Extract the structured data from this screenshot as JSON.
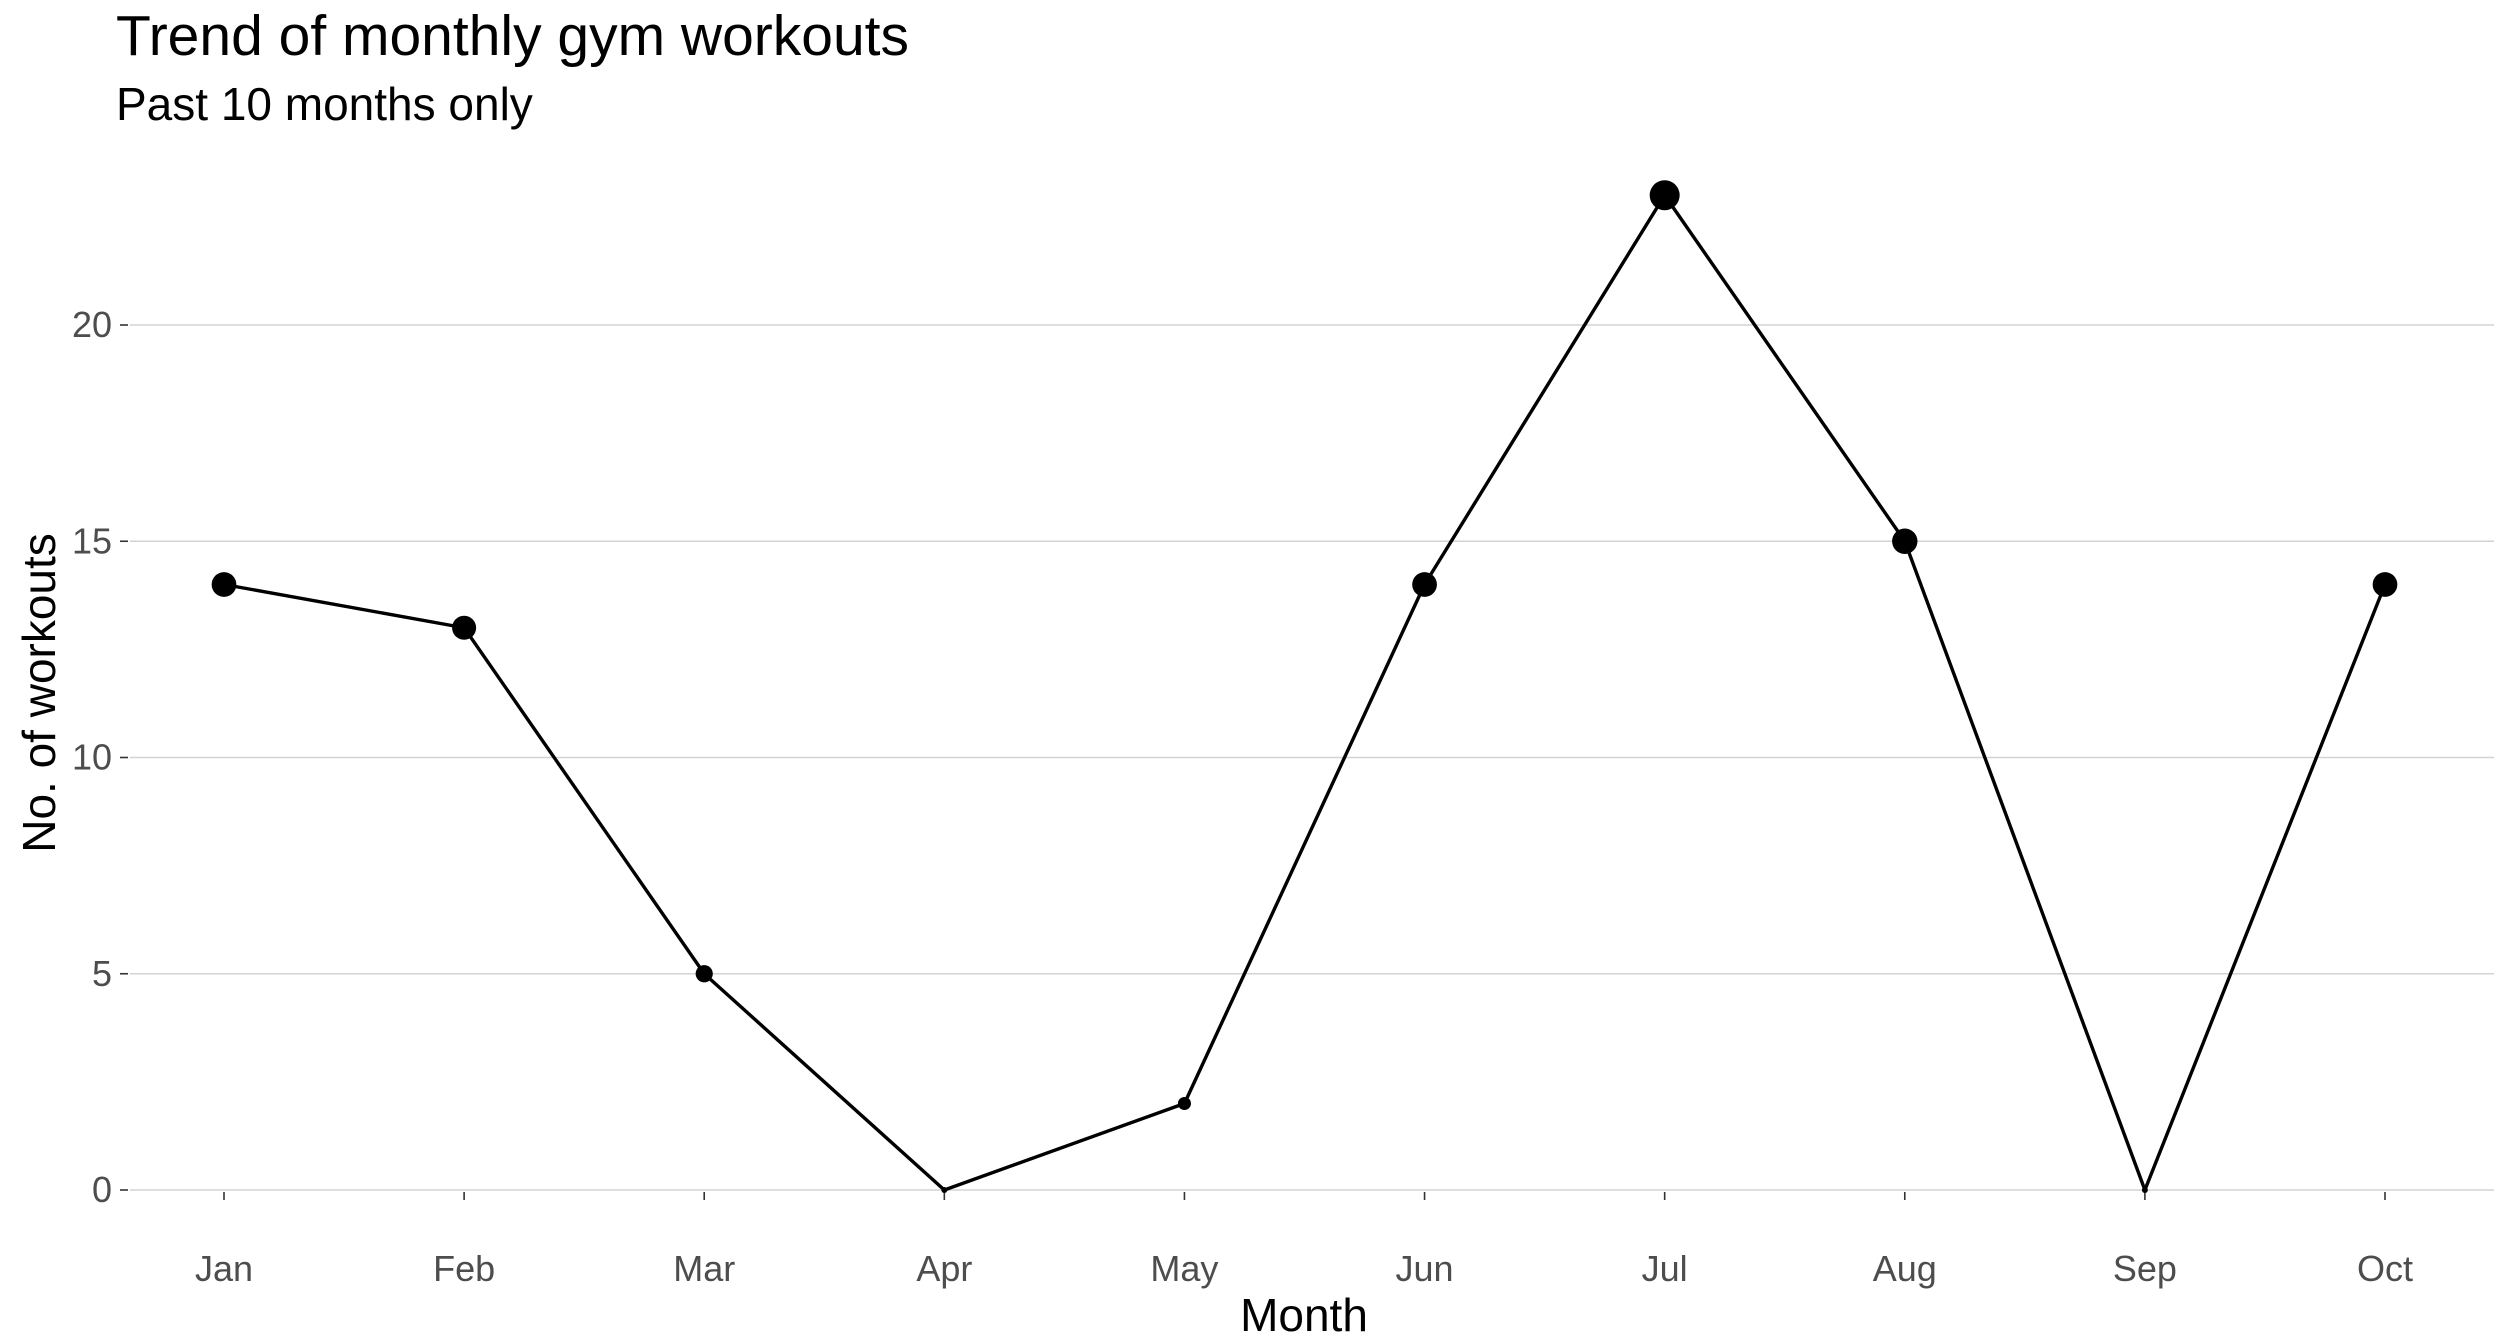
{
  "chart_data": {
    "type": "line",
    "title": "Trend of monthly gym workouts",
    "subtitle": "Past 10 months only",
    "xlabel": "Month",
    "ylabel": "No. of workouts",
    "categories": [
      "Jan",
      "Feb",
      "Mar",
      "Apr",
      "May",
      "Jun",
      "Jul",
      "Aug",
      "Sep",
      "Oct"
    ],
    "series": [
      {
        "values": [
          14,
          13,
          5,
          0,
          2,
          14,
          23,
          15,
          0,
          14
        ]
      }
    ],
    "point_size_encodes_value": true,
    "yticks": [
      0,
      5,
      10,
      15,
      20
    ],
    "ylim": [
      0,
      23
    ],
    "grid": {
      "horizontal": true,
      "vertical": false
    },
    "colors": {
      "line": "#000000",
      "points": "#000000",
      "grid": "#d3d3d3",
      "tick_text": "#4d4d4d"
    }
  }
}
